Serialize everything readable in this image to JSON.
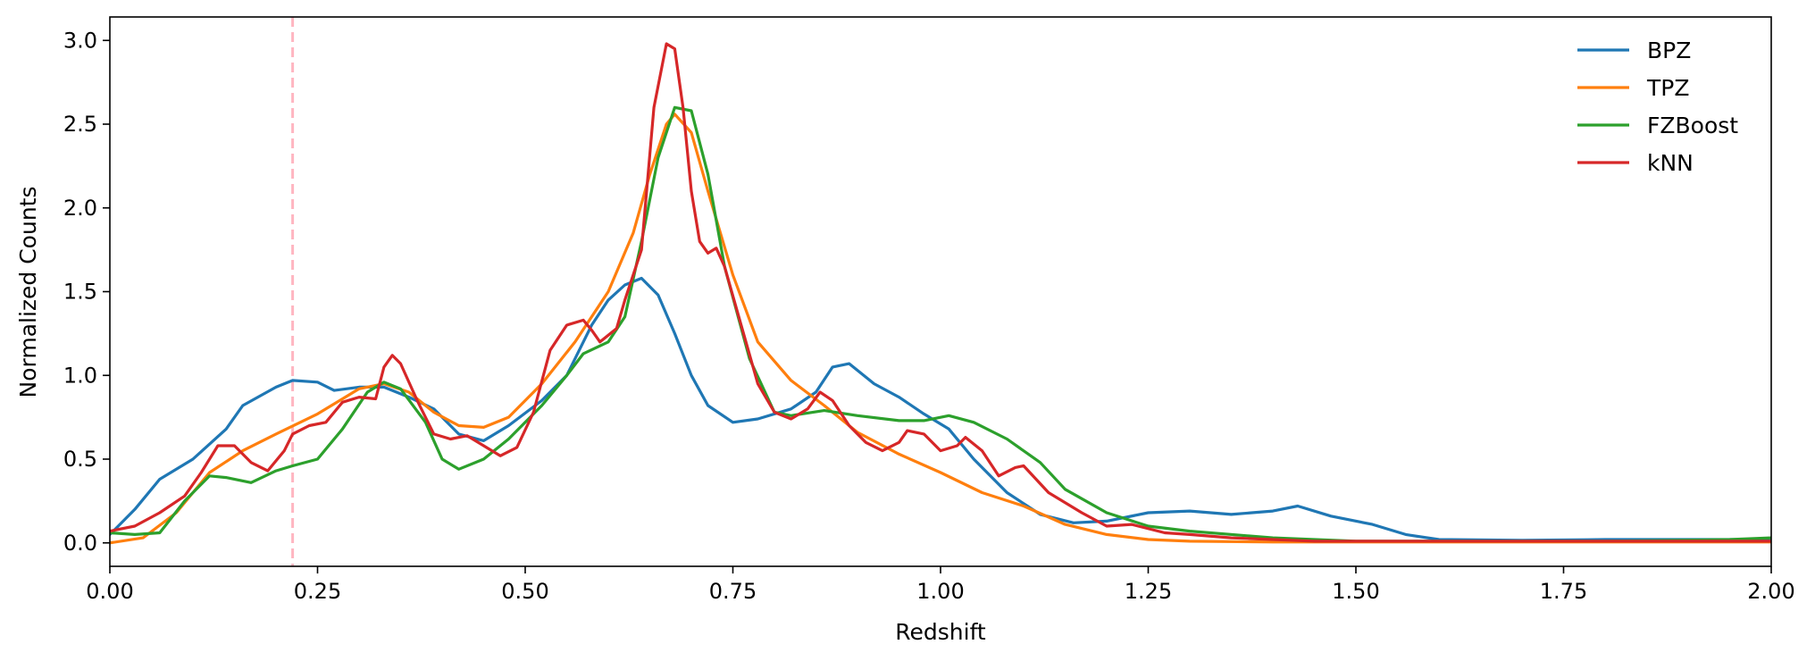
{
  "chart_data": {
    "type": "line",
    "xlabel": "Redshift",
    "ylabel": "Normalized Counts",
    "xlim": [
      0.0,
      2.0
    ],
    "ylim": [
      -0.14,
      3.14
    ],
    "xticks": [
      "0.00",
      "0.25",
      "0.50",
      "0.75",
      "1.00",
      "1.25",
      "1.50",
      "1.75",
      "2.00"
    ],
    "yticks": [
      "0.0",
      "0.5",
      "1.0",
      "1.5",
      "2.0",
      "2.5",
      "3.0"
    ],
    "grid": false,
    "legend_position": "top-right",
    "reference_line": {
      "x": 0.22,
      "style": "dashed",
      "color": "#ffb6c1"
    },
    "series": [
      {
        "name": "BPZ",
        "color": "#1f77b4",
        "points": [
          [
            0.0,
            0.05
          ],
          [
            0.03,
            0.2
          ],
          [
            0.06,
            0.38
          ],
          [
            0.1,
            0.5
          ],
          [
            0.14,
            0.68
          ],
          [
            0.16,
            0.82
          ],
          [
            0.2,
            0.93
          ],
          [
            0.22,
            0.97
          ],
          [
            0.25,
            0.96
          ],
          [
            0.27,
            0.91
          ],
          [
            0.3,
            0.93
          ],
          [
            0.33,
            0.93
          ],
          [
            0.36,
            0.87
          ],
          [
            0.39,
            0.8
          ],
          [
            0.42,
            0.65
          ],
          [
            0.45,
            0.61
          ],
          [
            0.48,
            0.7
          ],
          [
            0.52,
            0.85
          ],
          [
            0.55,
            1.0
          ],
          [
            0.58,
            1.3
          ],
          [
            0.6,
            1.45
          ],
          [
            0.62,
            1.54
          ],
          [
            0.64,
            1.58
          ],
          [
            0.66,
            1.48
          ],
          [
            0.68,
            1.25
          ],
          [
            0.7,
            1.0
          ],
          [
            0.72,
            0.82
          ],
          [
            0.75,
            0.72
          ],
          [
            0.78,
            0.74
          ],
          [
            0.82,
            0.8
          ],
          [
            0.85,
            0.9
          ],
          [
            0.87,
            1.05
          ],
          [
            0.89,
            1.07
          ],
          [
            0.92,
            0.95
          ],
          [
            0.95,
            0.87
          ],
          [
            0.98,
            0.77
          ],
          [
            1.01,
            0.68
          ],
          [
            1.04,
            0.5
          ],
          [
            1.08,
            0.3
          ],
          [
            1.12,
            0.17
          ],
          [
            1.16,
            0.12
          ],
          [
            1.2,
            0.13
          ],
          [
            1.25,
            0.18
          ],
          [
            1.3,
            0.19
          ],
          [
            1.35,
            0.17
          ],
          [
            1.4,
            0.19
          ],
          [
            1.43,
            0.22
          ],
          [
            1.47,
            0.16
          ],
          [
            1.52,
            0.11
          ],
          [
            1.56,
            0.05
          ],
          [
            1.6,
            0.02
          ],
          [
            1.7,
            0.015
          ],
          [
            1.8,
            0.02
          ],
          [
            1.9,
            0.02
          ],
          [
            2.0,
            0.02
          ]
        ]
      },
      {
        "name": "TPZ",
        "color": "#ff7f0e",
        "points": [
          [
            0.0,
            0.0
          ],
          [
            0.04,
            0.03
          ],
          [
            0.08,
            0.18
          ],
          [
            0.12,
            0.42
          ],
          [
            0.16,
            0.55
          ],
          [
            0.2,
            0.65
          ],
          [
            0.25,
            0.77
          ],
          [
            0.3,
            0.92
          ],
          [
            0.33,
            0.95
          ],
          [
            0.36,
            0.9
          ],
          [
            0.39,
            0.78
          ],
          [
            0.42,
            0.7
          ],
          [
            0.45,
            0.69
          ],
          [
            0.48,
            0.75
          ],
          [
            0.52,
            0.95
          ],
          [
            0.56,
            1.2
          ],
          [
            0.6,
            1.5
          ],
          [
            0.63,
            1.85
          ],
          [
            0.65,
            2.2
          ],
          [
            0.67,
            2.5
          ],
          [
            0.68,
            2.56
          ],
          [
            0.7,
            2.45
          ],
          [
            0.72,
            2.1
          ],
          [
            0.75,
            1.6
          ],
          [
            0.78,
            1.2
          ],
          [
            0.82,
            0.97
          ],
          [
            0.86,
            0.82
          ],
          [
            0.9,
            0.66
          ],
          [
            0.95,
            0.53
          ],
          [
            1.0,
            0.42
          ],
          [
            1.05,
            0.3
          ],
          [
            1.1,
            0.22
          ],
          [
            1.15,
            0.11
          ],
          [
            1.2,
            0.05
          ],
          [
            1.25,
            0.02
          ],
          [
            1.3,
            0.01
          ],
          [
            1.4,
            0.005
          ],
          [
            1.5,
            0.005
          ],
          [
            1.6,
            0.005
          ],
          [
            1.8,
            0.005
          ],
          [
            2.0,
            0.005
          ]
        ]
      },
      {
        "name": "FZBoost",
        "color": "#2ca02c",
        "points": [
          [
            0.0,
            0.06
          ],
          [
            0.03,
            0.05
          ],
          [
            0.06,
            0.06
          ],
          [
            0.09,
            0.25
          ],
          [
            0.12,
            0.4
          ],
          [
            0.14,
            0.39
          ],
          [
            0.17,
            0.36
          ],
          [
            0.2,
            0.43
          ],
          [
            0.22,
            0.46
          ],
          [
            0.25,
            0.5
          ],
          [
            0.28,
            0.68
          ],
          [
            0.31,
            0.9
          ],
          [
            0.33,
            0.96
          ],
          [
            0.35,
            0.92
          ],
          [
            0.38,
            0.72
          ],
          [
            0.4,
            0.5
          ],
          [
            0.42,
            0.44
          ],
          [
            0.45,
            0.5
          ],
          [
            0.48,
            0.62
          ],
          [
            0.52,
            0.82
          ],
          [
            0.55,
            1.0
          ],
          [
            0.57,
            1.13
          ],
          [
            0.6,
            1.2
          ],
          [
            0.62,
            1.35
          ],
          [
            0.64,
            1.8
          ],
          [
            0.66,
            2.3
          ],
          [
            0.68,
            2.6
          ],
          [
            0.7,
            2.58
          ],
          [
            0.72,
            2.2
          ],
          [
            0.74,
            1.65
          ],
          [
            0.77,
            1.1
          ],
          [
            0.8,
            0.78
          ],
          [
            0.82,
            0.76
          ],
          [
            0.86,
            0.79
          ],
          [
            0.9,
            0.76
          ],
          [
            0.95,
            0.73
          ],
          [
            0.98,
            0.73
          ],
          [
            1.01,
            0.76
          ],
          [
            1.04,
            0.72
          ],
          [
            1.08,
            0.62
          ],
          [
            1.12,
            0.48
          ],
          [
            1.15,
            0.32
          ],
          [
            1.2,
            0.18
          ],
          [
            1.25,
            0.1
          ],
          [
            1.3,
            0.07
          ],
          [
            1.4,
            0.03
          ],
          [
            1.5,
            0.01
          ],
          [
            1.6,
            0.01
          ],
          [
            1.8,
            0.01
          ],
          [
            1.95,
            0.02
          ],
          [
            2.0,
            0.03
          ]
        ]
      },
      {
        "name": "kNN",
        "color": "#d62728",
        "points": [
          [
            0.0,
            0.07
          ],
          [
            0.03,
            0.1
          ],
          [
            0.06,
            0.18
          ],
          [
            0.09,
            0.28
          ],
          [
            0.11,
            0.42
          ],
          [
            0.13,
            0.58
          ],
          [
            0.15,
            0.58
          ],
          [
            0.17,
            0.48
          ],
          [
            0.19,
            0.43
          ],
          [
            0.21,
            0.55
          ],
          [
            0.22,
            0.65
          ],
          [
            0.24,
            0.7
          ],
          [
            0.26,
            0.72
          ],
          [
            0.28,
            0.84
          ],
          [
            0.3,
            0.87
          ],
          [
            0.32,
            0.86
          ],
          [
            0.33,
            1.05
          ],
          [
            0.34,
            1.12
          ],
          [
            0.35,
            1.07
          ],
          [
            0.37,
            0.85
          ],
          [
            0.39,
            0.65
          ],
          [
            0.41,
            0.62
          ],
          [
            0.43,
            0.64
          ],
          [
            0.45,
            0.58
          ],
          [
            0.47,
            0.52
          ],
          [
            0.49,
            0.57
          ],
          [
            0.51,
            0.78
          ],
          [
            0.53,
            1.15
          ],
          [
            0.55,
            1.3
          ],
          [
            0.57,
            1.33
          ],
          [
            0.58,
            1.27
          ],
          [
            0.59,
            1.2
          ],
          [
            0.61,
            1.28
          ],
          [
            0.62,
            1.45
          ],
          [
            0.64,
            1.75
          ],
          [
            0.655,
            2.6
          ],
          [
            0.67,
            2.98
          ],
          [
            0.68,
            2.95
          ],
          [
            0.69,
            2.6
          ],
          [
            0.7,
            2.1
          ],
          [
            0.71,
            1.8
          ],
          [
            0.72,
            1.73
          ],
          [
            0.73,
            1.76
          ],
          [
            0.74,
            1.65
          ],
          [
            0.76,
            1.3
          ],
          [
            0.78,
            0.95
          ],
          [
            0.8,
            0.78
          ],
          [
            0.82,
            0.74
          ],
          [
            0.84,
            0.8
          ],
          [
            0.855,
            0.9
          ],
          [
            0.87,
            0.85
          ],
          [
            0.89,
            0.7
          ],
          [
            0.91,
            0.6
          ],
          [
            0.93,
            0.55
          ],
          [
            0.95,
            0.6
          ],
          [
            0.96,
            0.67
          ],
          [
            0.98,
            0.65
          ],
          [
            1.0,
            0.55
          ],
          [
            1.02,
            0.58
          ],
          [
            1.03,
            0.63
          ],
          [
            1.05,
            0.55
          ],
          [
            1.07,
            0.4
          ],
          [
            1.09,
            0.45
          ],
          [
            1.1,
            0.46
          ],
          [
            1.13,
            0.3
          ],
          [
            1.17,
            0.18
          ],
          [
            1.2,
            0.1
          ],
          [
            1.23,
            0.11
          ],
          [
            1.27,
            0.06
          ],
          [
            1.3,
            0.05
          ],
          [
            1.35,
            0.03
          ],
          [
            1.45,
            0.01
          ],
          [
            1.6,
            0.01
          ],
          [
            1.8,
            0.01
          ],
          [
            2.0,
            0.01
          ]
        ]
      }
    ]
  }
}
